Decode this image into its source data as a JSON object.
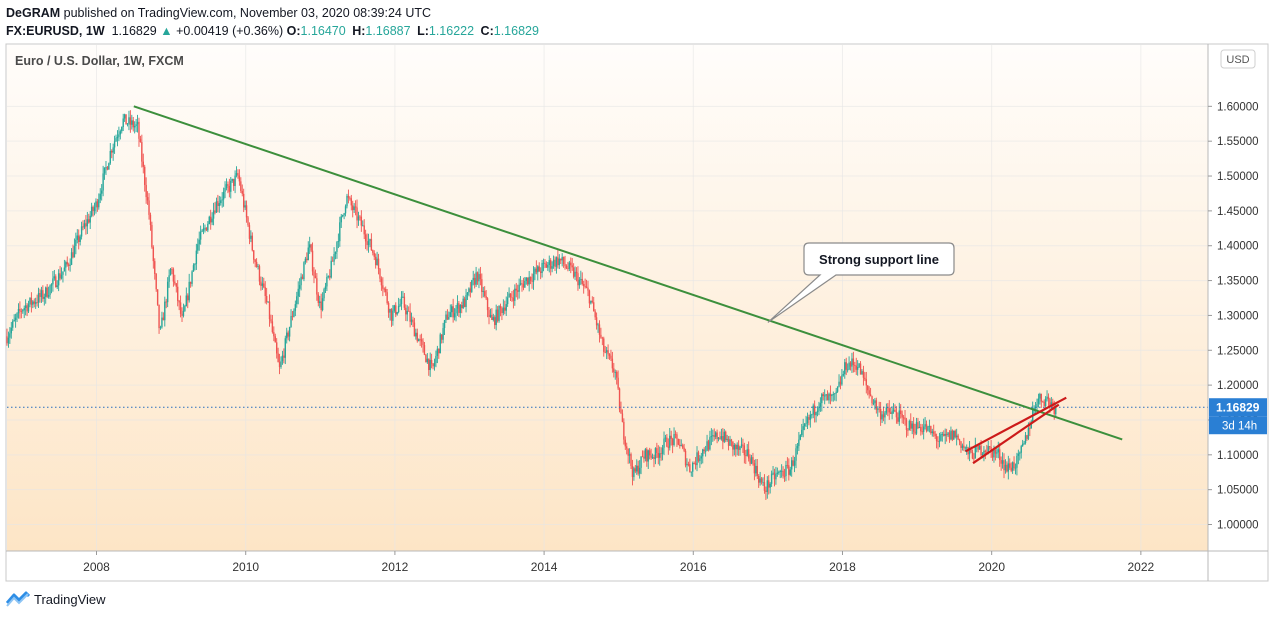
{
  "header": {
    "publisher": "DeGRAM",
    "published_text": "published on TradingView.com, November 03, 2020 08:39:24 UTC",
    "symbol": "FX:EURUSD, 1W",
    "last": "1.16829",
    "change_arrow": "▲",
    "change": "+0.00419 (+0.36%)",
    "ohlc": [
      {
        "k": "O:",
        "v": "1.16470"
      },
      {
        "k": "H:",
        "v": "1.16887"
      },
      {
        "k": "L:",
        "v": "1.16222"
      },
      {
        "k": "C:",
        "v": "1.16829"
      }
    ]
  },
  "footer": {
    "brand": "TradingView"
  },
  "colors": {
    "up": "#26a69a",
    "down": "#ef5350",
    "trendline": "#3c8f3c",
    "wedge": "#cc1a1a",
    "price_label_bg": "#2a7fd4",
    "grid": "#e6e6e6"
  },
  "chart_data": {
    "type": "candlestick",
    "title": "Euro / U.S. Dollar, 1W, FXCM",
    "currency_button": "USD",
    "y_ticks": [
      "1.60000",
      "1.55000",
      "1.50000",
      "1.45000",
      "1.40000",
      "1.35000",
      "1.30000",
      "1.25000",
      "1.20000",
      "1.15000",
      "1.10000",
      "1.05000",
      "1.00000"
    ],
    "x_ticks": [
      "2008",
      "2010",
      "2012",
      "2014",
      "2016",
      "2018",
      "2020",
      "2022"
    ],
    "ylim": [
      0.962,
      1.688
    ],
    "xlim": [
      2006.8,
      2022.9
    ],
    "last_price": 1.16829,
    "last_price_label": "1.16829",
    "countdown_label": "3d 14h",
    "price_path": [
      [
        2006.8,
        1.27
      ],
      [
        2007.0,
        1.31
      ],
      [
        2007.3,
        1.33
      ],
      [
        2007.6,
        1.37
      ],
      [
        2007.8,
        1.42
      ],
      [
        2008.0,
        1.46
      ],
      [
        2008.2,
        1.54
      ],
      [
        2008.35,
        1.58
      ],
      [
        2008.55,
        1.57
      ],
      [
        2008.7,
        1.45
      ],
      [
        2008.85,
        1.27
      ],
      [
        2009.0,
        1.37
      ],
      [
        2009.15,
        1.29
      ],
      [
        2009.35,
        1.4
      ],
      [
        2009.6,
        1.46
      ],
      [
        2009.9,
        1.5
      ],
      [
        2010.1,
        1.39
      ],
      [
        2010.3,
        1.31
      ],
      [
        2010.45,
        1.22
      ],
      [
        2010.6,
        1.29
      ],
      [
        2010.85,
        1.4
      ],
      [
        2011.0,
        1.31
      ],
      [
        2011.15,
        1.37
      ],
      [
        2011.35,
        1.47
      ],
      [
        2011.55,
        1.43
      ],
      [
        2011.75,
        1.38
      ],
      [
        2011.95,
        1.3
      ],
      [
        2012.1,
        1.32
      ],
      [
        2012.3,
        1.27
      ],
      [
        2012.5,
        1.22
      ],
      [
        2012.7,
        1.3
      ],
      [
        2012.95,
        1.32
      ],
      [
        2013.1,
        1.36
      ],
      [
        2013.3,
        1.29
      ],
      [
        2013.5,
        1.32
      ],
      [
        2013.75,
        1.35
      ],
      [
        2014.0,
        1.37
      ],
      [
        2014.2,
        1.38
      ],
      [
        2014.4,
        1.36
      ],
      [
        2014.6,
        1.33
      ],
      [
        2014.8,
        1.25
      ],
      [
        2014.95,
        1.22
      ],
      [
        2015.05,
        1.14
      ],
      [
        2015.2,
        1.07
      ],
      [
        2015.35,
        1.1
      ],
      [
        2015.5,
        1.1
      ],
      [
        2015.65,
        1.12
      ],
      [
        2015.8,
        1.12
      ],
      [
        2015.95,
        1.08
      ],
      [
        2016.15,
        1.11
      ],
      [
        2016.35,
        1.13
      ],
      [
        2016.55,
        1.11
      ],
      [
        2016.75,
        1.1
      ],
      [
        2016.95,
        1.05
      ],
      [
        2017.1,
        1.07
      ],
      [
        2017.3,
        1.08
      ],
      [
        2017.5,
        1.14
      ],
      [
        2017.7,
        1.18
      ],
      [
        2017.9,
        1.18
      ],
      [
        2018.05,
        1.23
      ],
      [
        2018.2,
        1.23
      ],
      [
        2018.35,
        1.19
      ],
      [
        2018.5,
        1.16
      ],
      [
        2018.7,
        1.16
      ],
      [
        2018.9,
        1.14
      ],
      [
        2019.1,
        1.14
      ],
      [
        2019.3,
        1.12
      ],
      [
        2019.5,
        1.13
      ],
      [
        2019.7,
        1.1
      ],
      [
        2019.9,
        1.11
      ],
      [
        2020.1,
        1.1
      ],
      [
        2020.2,
        1.08
      ],
      [
        2020.35,
        1.09
      ],
      [
        2020.45,
        1.12
      ],
      [
        2020.6,
        1.18
      ],
      [
        2020.75,
        1.18
      ],
      [
        2020.84,
        1.168
      ]
    ],
    "annotations": [
      {
        "type": "trendline",
        "from": [
          2008.5,
          1.6
        ],
        "to": [
          2021.75,
          1.122
        ]
      },
      {
        "type": "wedge-line",
        "from": [
          2019.65,
          1.105
        ],
        "to": [
          2021.0,
          1.182
        ]
      },
      {
        "type": "wedge-line",
        "from": [
          2019.75,
          1.088
        ],
        "to": [
          2020.9,
          1.172
        ]
      },
      {
        "type": "callout",
        "text": "Strong support line",
        "anchor": [
          2017.0,
          1.29
        ]
      }
    ]
  }
}
